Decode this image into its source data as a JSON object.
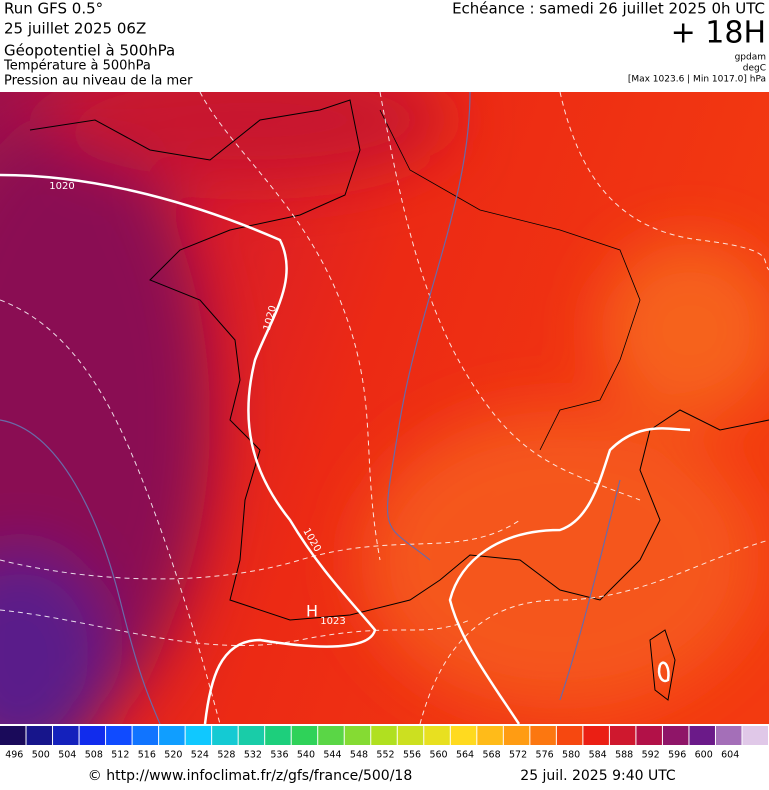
{
  "header": {
    "run": "Run GFS 0.5°",
    "run_date": "25 juillet 2025 06Z",
    "field_1": "Géopotentiel à 500hPa",
    "field_2": "Température à 500hPa",
    "field_3": "Pression au niveau de la mer",
    "valid": "Echéance : samedi 26 juillet 2025 0h UTC",
    "lead": "+ 18H",
    "unit_1": "gpdam",
    "unit_2": "degC",
    "range": "[Max 1023.6 | Min 1017.0] hPa"
  },
  "map": {
    "isobar_labels": [
      "1020",
      "1020",
      "1020"
    ],
    "high_symbol": "H",
    "high_value": "1023"
  },
  "colorbar": {
    "labels": [
      496,
      500,
      504,
      508,
      512,
      516,
      520,
      524,
      528,
      532,
      536,
      540,
      544,
      548,
      552,
      556,
      560,
      564,
      568,
      572,
      576,
      580,
      584,
      588,
      592,
      596,
      600,
      604
    ]
  },
  "footer": {
    "credit": "© http://www.infoclimat.fr/z/gfs/france/500/18",
    "time": "25 juil. 2025  9:40 UTC"
  }
}
